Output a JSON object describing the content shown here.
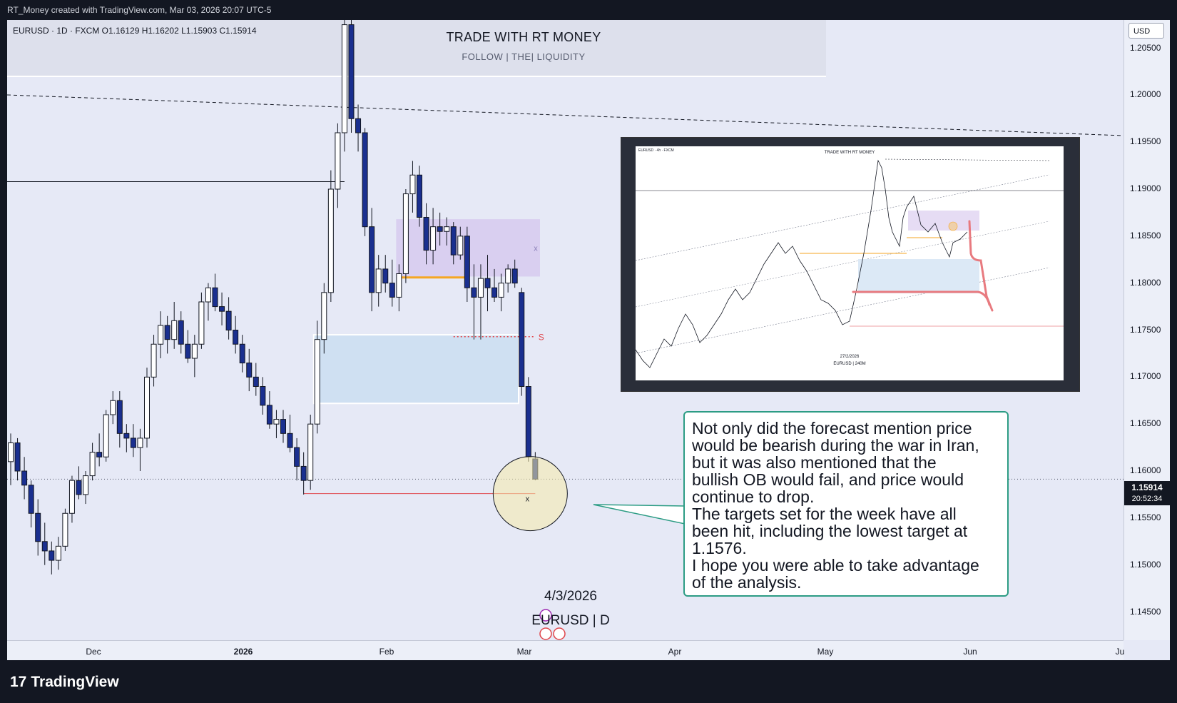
{
  "header": {
    "attribution": "RT_Money created with TradingView.com, Mar 03, 2026 20:07 UTC-5"
  },
  "chart_data": {
    "type": "candlestick",
    "symbol_line": "EURUSD · 1D · FXCM  O1.16129  H1.16202  L1.15903  C1.15914",
    "banner": {
      "title": "TRADE WITH RT MONEY",
      "subtitle": "FOLLOW  |  THE|  LIQUIDITY"
    },
    "currency": "USD",
    "y_ticks": [
      "1.20500",
      "1.20000",
      "1.19500",
      "1.19000",
      "1.18500",
      "1.18000",
      "1.17500",
      "1.17000",
      "1.16500",
      "1.16000",
      "1.15500",
      "1.15000",
      "1.14500"
    ],
    "ylim": [
      1.142,
      1.208
    ],
    "last_price": "1.15914",
    "countdown": "20:52:34",
    "x_labels": [
      "Dec",
      "2026",
      "Feb",
      "Mar",
      "Apr",
      "May",
      "Jun",
      "Ju"
    ],
    "candles": [
      [
        1.161,
        1.164,
        1.1585,
        1.163
      ],
      [
        1.163,
        1.1635,
        1.159,
        1.16
      ],
      [
        1.16,
        1.1615,
        1.157,
        1.1585
      ],
      [
        1.1585,
        1.159,
        1.154,
        1.1555
      ],
      [
        1.1555,
        1.157,
        1.151,
        1.1525
      ],
      [
        1.1525,
        1.1545,
        1.15,
        1.1515
      ],
      [
        1.1515,
        1.1525,
        1.149,
        1.1505
      ],
      [
        1.1505,
        1.153,
        1.1495,
        1.152
      ],
      [
        1.152,
        1.156,
        1.1515,
        1.1555
      ],
      [
        1.1555,
        1.1595,
        1.1545,
        1.159
      ],
      [
        1.159,
        1.1605,
        1.157,
        1.1575
      ],
      [
        1.1575,
        1.16,
        1.1565,
        1.1595
      ],
      [
        1.1595,
        1.163,
        1.159,
        1.162
      ],
      [
        1.162,
        1.164,
        1.1605,
        1.1615
      ],
      [
        1.1615,
        1.1665,
        1.161,
        1.166
      ],
      [
        1.166,
        1.1685,
        1.165,
        1.1675
      ],
      [
        1.1675,
        1.1685,
        1.1625,
        1.164
      ],
      [
        1.164,
        1.165,
        1.162,
        1.1635
      ],
      [
        1.1635,
        1.165,
        1.1615,
        1.1625
      ],
      [
        1.1625,
        1.1645,
        1.16,
        1.1635
      ],
      [
        1.1635,
        1.171,
        1.1625,
        1.17
      ],
      [
        1.17,
        1.1745,
        1.169,
        1.1735
      ],
      [
        1.1735,
        1.177,
        1.172,
        1.1755
      ],
      [
        1.1755,
        1.1765,
        1.1725,
        1.174
      ],
      [
        1.174,
        1.178,
        1.173,
        1.176
      ],
      [
        1.176,
        1.177,
        1.1725,
        1.1735
      ],
      [
        1.1735,
        1.175,
        1.1715,
        1.172
      ],
      [
        1.172,
        1.1745,
        1.17,
        1.1735
      ],
      [
        1.1735,
        1.179,
        1.173,
        1.178
      ],
      [
        1.178,
        1.18,
        1.176,
        1.1795
      ],
      [
        1.1795,
        1.181,
        1.177,
        1.1775
      ],
      [
        1.1775,
        1.179,
        1.1755,
        1.177
      ],
      [
        1.177,
        1.1785,
        1.174,
        1.175
      ],
      [
        1.175,
        1.1765,
        1.1725,
        1.1735
      ],
      [
        1.1735,
        1.1745,
        1.1705,
        1.1715
      ],
      [
        1.1715,
        1.173,
        1.1685,
        1.17
      ],
      [
        1.17,
        1.1715,
        1.168,
        1.169
      ],
      [
        1.169,
        1.17,
        1.166,
        1.167
      ],
      [
        1.167,
        1.1685,
        1.1645,
        1.165
      ],
      [
        1.165,
        1.1665,
        1.1635,
        1.1655
      ],
      [
        1.1655,
        1.1665,
        1.163,
        1.164
      ],
      [
        1.164,
        1.166,
        1.162,
        1.1625
      ],
      [
        1.1625,
        1.1635,
        1.159,
        1.1605
      ],
      [
        1.1605,
        1.162,
        1.1575,
        1.159
      ],
      [
        1.159,
        1.166,
        1.158,
        1.165
      ],
      [
        1.165,
        1.176,
        1.164,
        1.174
      ],
      [
        1.174,
        1.18,
        1.1725,
        1.179
      ],
      [
        1.179,
        1.192,
        1.178,
        1.19
      ],
      [
        1.19,
        1.197,
        1.188,
        1.196
      ],
      [
        1.196,
        1.2085,
        1.194,
        1.2075
      ],
      [
        1.2075,
        1.208,
        1.196,
        1.1975
      ],
      [
        1.1975,
        1.199,
        1.194,
        1.196
      ],
      [
        1.196,
        1.1965,
        1.185,
        1.186
      ],
      [
        1.186,
        1.188,
        1.177,
        1.179
      ],
      [
        1.179,
        1.183,
        1.1775,
        1.1815
      ],
      [
        1.1815,
        1.183,
        1.179,
        1.18
      ],
      [
        1.18,
        1.1825,
        1.1775,
        1.1785
      ],
      [
        1.1785,
        1.182,
        1.177,
        1.181
      ],
      [
        1.181,
        1.19,
        1.18,
        1.1895
      ],
      [
        1.1895,
        1.193,
        1.1875,
        1.1915
      ],
      [
        1.1915,
        1.1925,
        1.186,
        1.187
      ],
      [
        1.187,
        1.1885,
        1.182,
        1.1835
      ],
      [
        1.1835,
        1.188,
        1.182,
        1.186
      ],
      [
        1.186,
        1.1875,
        1.184,
        1.1855
      ],
      [
        1.1855,
        1.187,
        1.184,
        1.186
      ],
      [
        1.186,
        1.1865,
        1.182,
        1.183
      ],
      [
        1.183,
        1.186,
        1.1825,
        1.185
      ],
      [
        1.185,
        1.186,
        1.178,
        1.1795
      ],
      [
        1.1795,
        1.182,
        1.174,
        1.1785
      ],
      [
        1.1785,
        1.182,
        1.174,
        1.1805
      ],
      [
        1.1805,
        1.183,
        1.177,
        1.1795
      ],
      [
        1.1795,
        1.1815,
        1.178,
        1.1785
      ],
      [
        1.1785,
        1.181,
        1.177,
        1.18
      ],
      [
        1.18,
        1.182,
        1.179,
        1.1815
      ],
      [
        1.1815,
        1.1825,
        1.1795,
        1.18
      ],
      [
        1.179,
        1.1795,
        1.168,
        1.169
      ],
      [
        1.169,
        1.17,
        1.161,
        1.1615
      ],
      [
        1.16129,
        1.16202,
        1.15903,
        1.15914
      ]
    ],
    "zones": [
      {
        "name": "bearish-ob",
        "label": "x",
        "y1": 1.1807,
        "y2": 1.1868,
        "color": "#d9cff0"
      },
      {
        "name": "bullish-ob",
        "y1": 1.1672,
        "y2": 1.1745,
        "color": "#cfe0f2"
      }
    ],
    "levels": [
      {
        "name": "orange-level",
        "y": 1.1806
      },
      {
        "name": "red-dotted-level",
        "label": "S",
        "y": 1.1743
      },
      {
        "name": "red-thin-level",
        "y": 1.1576
      },
      {
        "name": "black-horizontal",
        "y": 1.1908
      },
      {
        "name": "current-price-dotted",
        "y": 1.15914
      }
    ],
    "target_marker": "x",
    "annotation": {
      "lines": [
        "Not only did the forecast mention price",
        "would be bearish during the war in Iran,",
        "but it was also mentioned that the",
        "bullish OB would fail, and price would",
        "continue to drop.",
        "The targets set for the week have all",
        "been hit, including the lowest target at",
        "1.1576.",
        "I hope you were able to take advantage",
        "of the analysis."
      ]
    },
    "caption": {
      "date": "4/3/2026",
      "symbol": "EURUSD | D"
    },
    "inset": {
      "title": "TRADE WITH RT MONEY",
      "date": "27/2/2026",
      "symbol": "EURUSD | 240M",
      "header": "EURUSD · 4h · FXCM"
    }
  },
  "footer": {
    "brand": "TradingView",
    "logo_glyph": "17"
  },
  "colors": {
    "bull": "#ffffff",
    "bear": "#1a2f8f",
    "orange": "#f5a623",
    "red": "#e0474c",
    "teal": "#2c9c84"
  }
}
